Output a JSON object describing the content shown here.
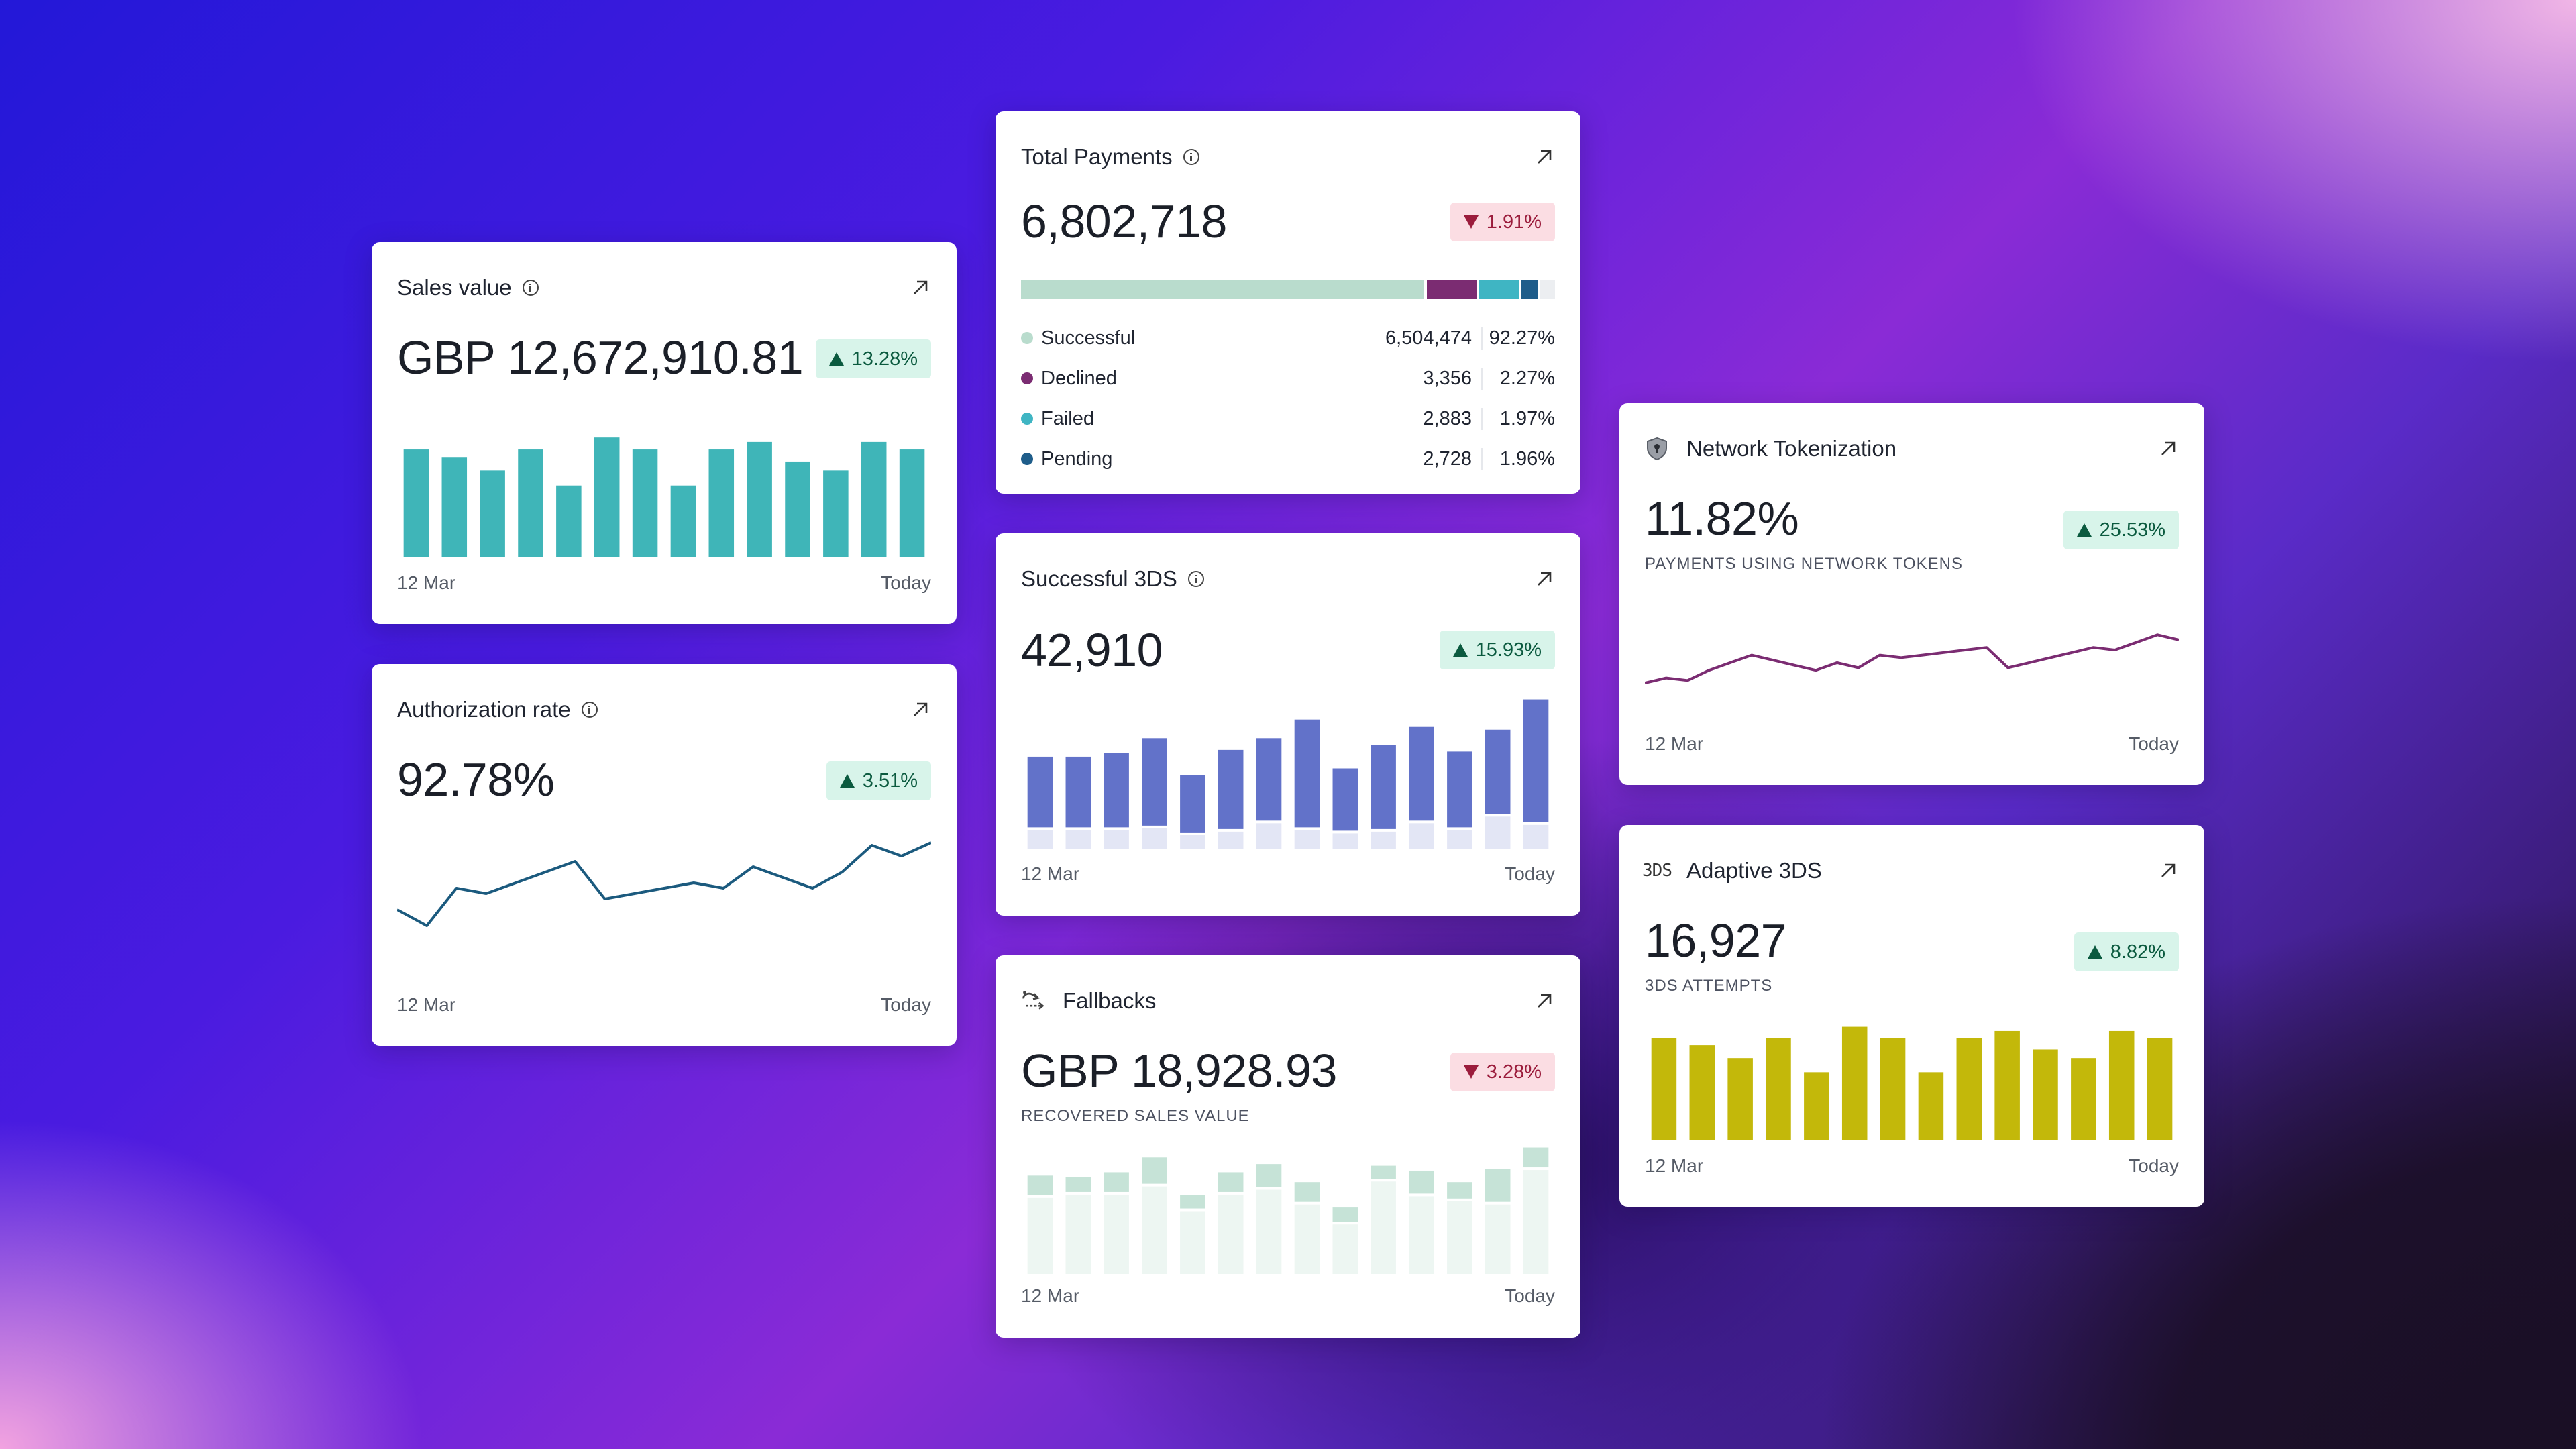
{
  "colors": {
    "teal_bar": "#3fb5b8",
    "indigo_bar": "#6272c9",
    "indigo_light": "#e3e6f5",
    "line_blue": "#1b5a7e",
    "line_purple": "#7b2c72",
    "olive_bar": "#c3b80a",
    "mint_bar": "#c6e3d7",
    "mint_light": "#edf6f2",
    "successful": "#b9dccd",
    "declined": "#7b2c72",
    "failed": "#3fb5c3",
    "pending": "#1f5d8a"
  },
  "cards": {
    "sales_value": {
      "title": "Sales value",
      "value": "GBP 12,672,910.81",
      "change": "13.28%",
      "direction": "up",
      "start_label": "12 Mar",
      "end_label": "Today"
    },
    "authorization_rate": {
      "title": "Authorization rate",
      "value": "92.78%",
      "change": "3.51%",
      "direction": "up",
      "start_label": "12 Mar",
      "end_label": "Today"
    },
    "total_payments": {
      "title": "Total Payments",
      "value": "6,802,718",
      "change": "1.91%",
      "direction": "down",
      "breakdown": [
        {
          "label": "Successful",
          "count": "6,504,474",
          "pct": "92.27%",
          "color_key": "successful",
          "share": 0.7556
        },
        {
          "label": "Declined",
          "count": "3,356",
          "pct": "2.27%",
          "color_key": "declined",
          "share": 0.0925
        },
        {
          "label": "Failed",
          "count": "2,883",
          "pct": "1.97%",
          "color_key": "failed",
          "share": 0.074
        },
        {
          "label": "Pending",
          "count": "2,728",
          "pct": "1.96%",
          "color_key": "pending",
          "share": 0.03
        }
      ]
    },
    "successful_3ds": {
      "title": "Successful 3DS",
      "value": "42,910",
      "change": "15.93%",
      "direction": "up",
      "start_label": "12 Mar",
      "end_label": "Today"
    },
    "fallbacks": {
      "title": "Fallbacks",
      "value": "GBP 18,928.93",
      "change": "3.28%",
      "direction": "down",
      "subtitle": "RECOVERED SALES VALUE",
      "start_label": "12 Mar",
      "end_label": "Today"
    },
    "network_tokenization": {
      "title": "Network Tokenization",
      "value": "11.82%",
      "change": "25.53%",
      "direction": "up",
      "subtitle": "PAYMENTS USING NETWORK TOKENS",
      "start_label": "12 Mar",
      "end_label": "Today"
    },
    "adaptive_3ds": {
      "title": "Adaptive 3DS",
      "icon_label": "3DS",
      "value": "16,927",
      "change": "8.82%",
      "direction": "up",
      "subtitle": "3DS ATTEMPTS",
      "start_label": "12 Mar",
      "end_label": "Today"
    }
  },
  "chart_data": [
    {
      "id": "sales",
      "type": "bar",
      "values": [
        72,
        67,
        58,
        72,
        48,
        80,
        72,
        48,
        72,
        77,
        64,
        58,
        77,
        72
      ],
      "ylim": [
        0,
        85
      ]
    },
    {
      "id": "auth",
      "type": "line",
      "values": [
        26,
        20,
        34,
        32,
        36,
        40,
        44,
        30,
        32,
        34,
        36,
        34,
        42,
        38,
        34,
        40,
        50,
        46,
        51
      ],
      "ylim": [
        0,
        60
      ]
    },
    {
      "id": "threeds",
      "type": "bar",
      "series": [
        {
          "name": "success",
          "values": [
            42,
            42,
            44,
            52,
            34,
            47,
            49,
            64,
            37,
            50,
            56,
            45,
            50,
            73
          ]
        },
        {
          "name": "other",
          "values": [
            11,
            11,
            11,
            12,
            8,
            10,
            15,
            11,
            9,
            10,
            15,
            11,
            19,
            14
          ]
        }
      ]
    },
    {
      "id": "fallbacks",
      "type": "bar",
      "series": [
        {
          "name": "recovered",
          "values": [
            12,
            9,
            12,
            16,
            8,
            12,
            14,
            12,
            9,
            8,
            14,
            10,
            20,
            12
          ]
        },
        {
          "name": "base",
          "values": [
            46,
            48,
            48,
            53,
            38,
            48,
            51,
            42,
            30,
            56,
            47,
            44,
            42,
            63
          ]
        }
      ]
    },
    {
      "id": "network",
      "type": "line",
      "values": [
        28,
        32,
        30,
        38,
        44,
        50,
        46,
        42,
        38,
        44,
        40,
        50,
        48,
        50,
        52,
        54,
        56,
        40,
        44,
        48,
        52,
        56,
        54,
        60,
        66,
        62
      ],
      "ylim": [
        0,
        90
      ]
    },
    {
      "id": "adaptive",
      "type": "bar",
      "values": [
        72,
        67,
        58,
        72,
        48,
        80,
        72,
        48,
        72,
        77,
        64,
        58,
        77,
        72
      ],
      "ylim": [
        0,
        85
      ]
    }
  ]
}
